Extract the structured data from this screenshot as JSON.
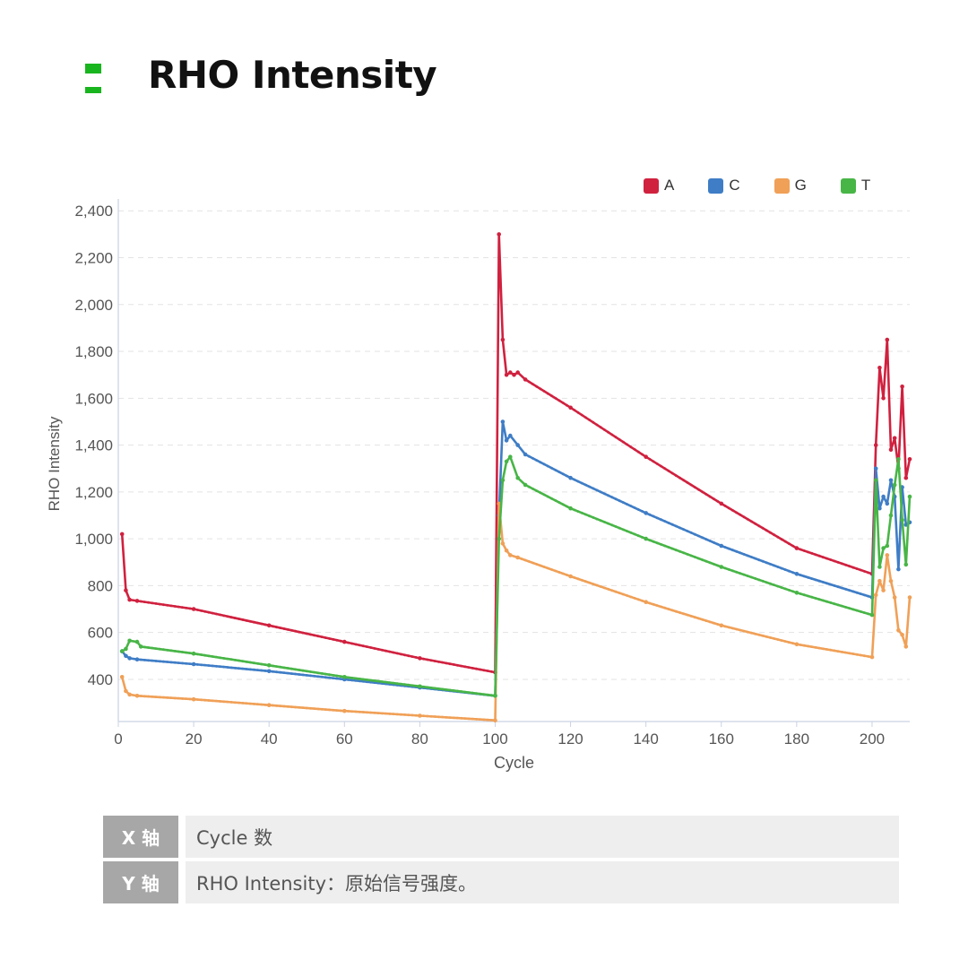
{
  "header": {
    "title": "RHO Intensity",
    "icon": "green-block-icon",
    "accent_color": "#19b51f"
  },
  "axis_table": {
    "rows": [
      {
        "key": "X 轴",
        "value": "Cycle 数"
      },
      {
        "key": "Y 轴",
        "value": "RHO Intensity：原始信号强度。"
      }
    ]
  },
  "chart_data": {
    "type": "line",
    "xlabel": "Cycle",
    "ylabel": "RHO Intensity",
    "xlim": [
      0,
      210
    ],
    "ylim": [
      220,
      2420
    ],
    "x_ticks": [
      0,
      20,
      40,
      60,
      80,
      100,
      120,
      140,
      160,
      180,
      200
    ],
    "y_ticks": [
      400,
      600,
      800,
      1000,
      1200,
      1400,
      1600,
      1800,
      2000,
      2200,
      2400
    ],
    "y_tick_labels": [
      "400",
      "600",
      "800",
      "1,000",
      "1,200",
      "1,400",
      "1,600",
      "1,800",
      "2,000",
      "2,200",
      "2,400"
    ],
    "grid": "horizontal-dashed",
    "legend_position": "top-right",
    "series": [
      {
        "name": "A",
        "color": "#d0213f",
        "points": [
          [
            1,
            1020
          ],
          [
            2,
            780
          ],
          [
            3,
            740
          ],
          [
            5,
            735
          ],
          [
            20,
            700
          ],
          [
            40,
            630
          ],
          [
            60,
            560
          ],
          [
            80,
            490
          ],
          [
            100,
            430
          ],
          [
            101,
            2300
          ],
          [
            102,
            1850
          ],
          [
            103,
            1700
          ],
          [
            104,
            1710
          ],
          [
            105,
            1700
          ],
          [
            106,
            1710
          ],
          [
            108,
            1680
          ],
          [
            120,
            1560
          ],
          [
            140,
            1350
          ],
          [
            160,
            1150
          ],
          [
            180,
            960
          ],
          [
            200,
            850
          ],
          [
            201,
            1400
          ],
          [
            202,
            1730
          ],
          [
            203,
            1600
          ],
          [
            204,
            1850
          ],
          [
            205,
            1380
          ],
          [
            206,
            1430
          ],
          [
            207,
            1300
          ],
          [
            208,
            1650
          ],
          [
            209,
            1260
          ],
          [
            210,
            1340
          ]
        ]
      },
      {
        "name": "C",
        "color": "#3f7dc6",
        "points": [
          [
            1,
            520
          ],
          [
            2,
            500
          ],
          [
            3,
            490
          ],
          [
            5,
            485
          ],
          [
            20,
            465
          ],
          [
            40,
            435
          ],
          [
            60,
            400
          ],
          [
            80,
            365
          ],
          [
            100,
            330
          ],
          [
            101,
            1100
          ],
          [
            102,
            1500
          ],
          [
            103,
            1420
          ],
          [
            104,
            1440
          ],
          [
            106,
            1400
          ],
          [
            108,
            1360
          ],
          [
            120,
            1260
          ],
          [
            140,
            1110
          ],
          [
            160,
            970
          ],
          [
            180,
            850
          ],
          [
            200,
            750
          ],
          [
            201,
            1300
          ],
          [
            202,
            1130
          ],
          [
            203,
            1180
          ],
          [
            204,
            1150
          ],
          [
            205,
            1250
          ],
          [
            206,
            1180
          ],
          [
            207,
            870
          ],
          [
            208,
            1220
          ],
          [
            209,
            1060
          ],
          [
            210,
            1070
          ]
        ]
      },
      {
        "name": "G",
        "color": "#f0a057",
        "points": [
          [
            1,
            410
          ],
          [
            2,
            350
          ],
          [
            3,
            335
          ],
          [
            5,
            330
          ],
          [
            20,
            315
          ],
          [
            40,
            290
          ],
          [
            60,
            265
          ],
          [
            80,
            245
          ],
          [
            100,
            225
          ],
          [
            101,
            1150
          ],
          [
            102,
            980
          ],
          [
            103,
            950
          ],
          [
            104,
            930
          ],
          [
            106,
            920
          ],
          [
            120,
            840
          ],
          [
            140,
            730
          ],
          [
            160,
            630
          ],
          [
            180,
            550
          ],
          [
            200,
            495
          ],
          [
            201,
            760
          ],
          [
            202,
            820
          ],
          [
            203,
            780
          ],
          [
            204,
            930
          ],
          [
            205,
            820
          ],
          [
            206,
            750
          ],
          [
            207,
            610
          ],
          [
            208,
            590
          ],
          [
            209,
            540
          ],
          [
            210,
            750
          ]
        ]
      },
      {
        "name": "T",
        "color": "#48b547",
        "points": [
          [
            1,
            520
          ],
          [
            2,
            530
          ],
          [
            3,
            565
          ],
          [
            5,
            560
          ],
          [
            6,
            540
          ],
          [
            20,
            510
          ],
          [
            40,
            460
          ],
          [
            60,
            410
          ],
          [
            80,
            370
          ],
          [
            100,
            330
          ],
          [
            101,
            1000
          ],
          [
            102,
            1250
          ],
          [
            103,
            1330
          ],
          [
            104,
            1350
          ],
          [
            106,
            1260
          ],
          [
            108,
            1230
          ],
          [
            120,
            1130
          ],
          [
            140,
            1000
          ],
          [
            160,
            880
          ],
          [
            180,
            770
          ],
          [
            200,
            675
          ],
          [
            201,
            1250
          ],
          [
            202,
            880
          ],
          [
            203,
            960
          ],
          [
            204,
            970
          ],
          [
            205,
            1100
          ],
          [
            206,
            1230
          ],
          [
            207,
            1340
          ],
          [
            208,
            1080
          ],
          [
            209,
            890
          ],
          [
            210,
            1180
          ]
        ]
      }
    ]
  }
}
